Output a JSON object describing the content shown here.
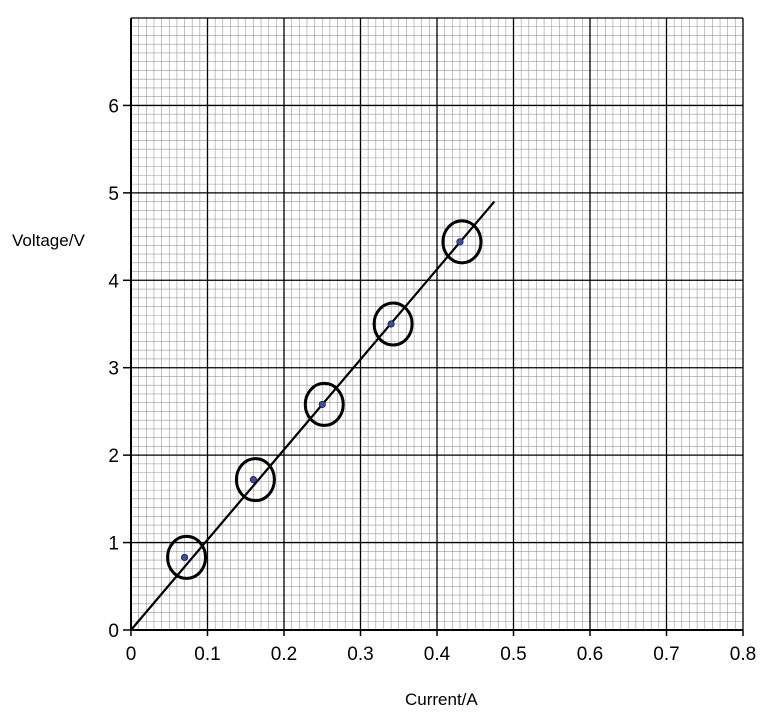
{
  "chart_data": {
    "type": "scatter",
    "xlabel": "Current/A",
    "ylabel": "Voltage/V",
    "xlim": [
      0,
      0.8
    ],
    "ylim": [
      0,
      7
    ],
    "x_ticks": [
      "0",
      "0.1",
      "0.2",
      "0.3",
      "0.4",
      "0.5",
      "0.6",
      "0.7",
      "0.8"
    ],
    "y_ticks": [
      "0",
      "1",
      "2",
      "3",
      "4",
      "5",
      "6"
    ],
    "grid": "graph paper: major every 0.1 A and 1 V, minor every 0.01 A and 0.1 V",
    "points": [
      {
        "x": 0.07,
        "y": 0.83
      },
      {
        "x": 0.16,
        "y": 1.72
      },
      {
        "x": 0.25,
        "y": 2.58
      },
      {
        "x": 0.34,
        "y": 3.5
      },
      {
        "x": 0.43,
        "y": 4.44
      }
    ],
    "best_fit_line": {
      "from": {
        "x": 0,
        "y": 0
      },
      "to": {
        "x": 0.475,
        "y": 4.9
      }
    },
    "circled_points": true,
    "colors": {
      "point": "#3a4fa0",
      "line": "#000000",
      "grid_major": "#000000",
      "grid_minor": "#9a9a9a"
    }
  }
}
